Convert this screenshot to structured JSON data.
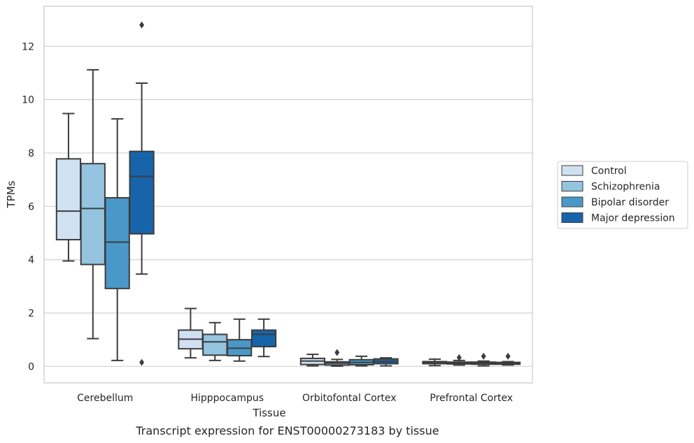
{
  "chart_data": {
    "type": "box",
    "xlabel": "Tissue",
    "ylabel": "TPMs",
    "caption": "Transcript expression for ENST00000273183 by tissue",
    "ylim": [
      -0.62,
      13.5
    ],
    "yticks": [
      0,
      2,
      4,
      6,
      8,
      10,
      12
    ],
    "grid": "horizontal",
    "legend_position": "right",
    "categories": [
      "Cerebellum",
      "Hipppocampus",
      "Orbitofontal Cortex",
      "Prefrontal Cortex"
    ],
    "series": [
      {
        "name": "Control",
        "color": "#d0e1f2",
        "boxes": [
          {
            "whislo": 3.95,
            "q1": 4.75,
            "med": 5.82,
            "q3": 7.78,
            "whishi": 9.48,
            "fliers": []
          },
          {
            "whislo": 0.32,
            "q1": 0.66,
            "med": 1.02,
            "q3": 1.36,
            "whishi": 2.17,
            "fliers": []
          },
          {
            "whislo": 0.02,
            "q1": 0.07,
            "med": 0.2,
            "q3": 0.3,
            "whishi": 0.45,
            "fliers": []
          },
          {
            "whislo": 0.03,
            "q1": 0.1,
            "med": 0.14,
            "q3": 0.18,
            "whishi": 0.27,
            "fliers": []
          }
        ]
      },
      {
        "name": "Schizophrenia",
        "color": "#94c4df",
        "boxes": [
          {
            "whislo": 1.04,
            "q1": 3.82,
            "med": 5.92,
            "q3": 7.6,
            "whishi": 11.12,
            "fliers": []
          },
          {
            "whislo": 0.22,
            "q1": 0.42,
            "med": 0.92,
            "q3": 1.2,
            "whishi": 1.64,
            "fliers": []
          },
          {
            "whislo": 0.01,
            "q1": 0.05,
            "med": 0.12,
            "q3": 0.17,
            "whishi": 0.26,
            "fliers": [
              0.52
            ]
          },
          {
            "whislo": 0.05,
            "q1": 0.09,
            "med": 0.12,
            "q3": 0.16,
            "whishi": 0.22,
            "fliers": [
              0.33
            ]
          }
        ]
      },
      {
        "name": "Bipolar disorder",
        "color": "#4a98c9",
        "boxes": [
          {
            "whislo": 0.22,
            "q1": 2.92,
            "med": 4.66,
            "q3": 6.32,
            "whishi": 9.28,
            "fliers": []
          },
          {
            "whislo": 0.2,
            "q1": 0.4,
            "med": 0.68,
            "q3": 1.0,
            "whishi": 1.77,
            "fliers": []
          },
          {
            "whislo": 0.02,
            "q1": 0.06,
            "med": 0.15,
            "q3": 0.25,
            "whishi": 0.38,
            "fliers": []
          },
          {
            "whislo": 0.02,
            "q1": 0.08,
            "med": 0.12,
            "q3": 0.16,
            "whishi": 0.2,
            "fliers": [
              0.38
            ]
          }
        ]
      },
      {
        "name": "Major depression",
        "color": "#1764ab",
        "boxes": [
          {
            "whislo": 3.46,
            "q1": 4.97,
            "med": 7.12,
            "q3": 8.06,
            "whishi": 10.62,
            "fliers": [
              12.8,
              0.15
            ]
          },
          {
            "whislo": 0.37,
            "q1": 0.74,
            "med": 1.2,
            "q3": 1.36,
            "whishi": 1.77,
            "fliers": []
          },
          {
            "whislo": 0.02,
            "q1": 0.1,
            "med": 0.18,
            "q3": 0.28,
            "whishi": 0.32,
            "fliers": []
          },
          {
            "whislo": 0.05,
            "q1": 0.08,
            "med": 0.12,
            "q3": 0.15,
            "whishi": 0.18,
            "fliers": [
              0.38
            ]
          }
        ]
      }
    ]
  }
}
